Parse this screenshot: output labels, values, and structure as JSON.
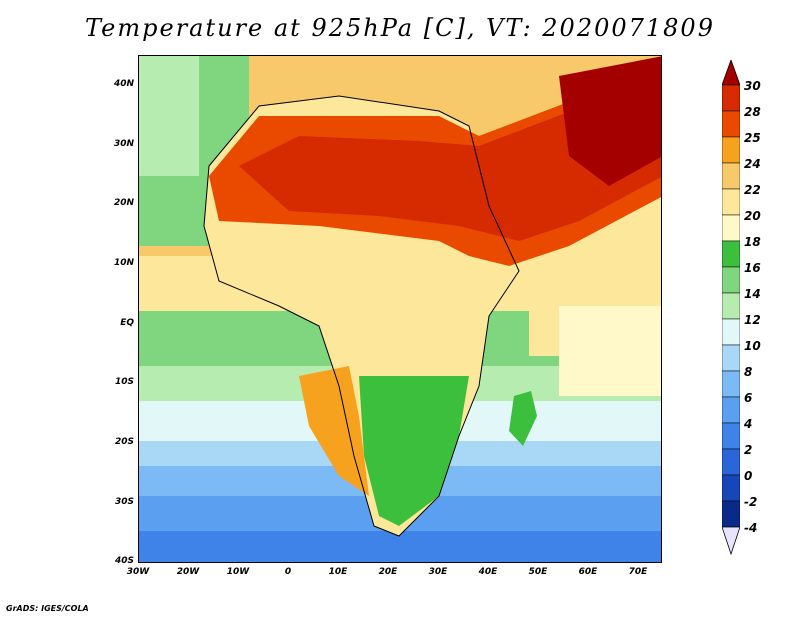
{
  "title": "Temperature at 925hPa [C], VT: 2020071809",
  "credit": "GrADS: IGES/COLA",
  "axes": {
    "lon_labels": [
      "30W",
      "20W",
      "10W",
      "0",
      "10E",
      "20E",
      "30E",
      "40E",
      "50E",
      "60E",
      "70E"
    ],
    "lat_labels": [
      "40N",
      "30N",
      "20N",
      "10N",
      "EQ",
      "10S",
      "20S",
      "30S",
      "40S"
    ]
  },
  "colorbar": {
    "labels": [
      "30",
      "28",
      "25",
      "24",
      "22",
      "20",
      "18",
      "16",
      "14",
      "12",
      "10",
      "8",
      "6",
      "4",
      "2",
      "0",
      "-2",
      "-4"
    ],
    "colors": [
      "#a50000",
      "#d62a00",
      "#ea4a00",
      "#f7a21e",
      "#f7c96a",
      "#fde79b",
      "#fff8c8",
      "#3cbf3c",
      "#7fd67f",
      "#b6ecb0",
      "#e2f8f8",
      "#a9d8f7",
      "#7bbaf5",
      "#5a9ff0",
      "#3f83e8",
      "#2a66d8",
      "#1746b8",
      "#0a2a8a",
      "#e8e4fb"
    ]
  },
  "map": {
    "region": "Africa and Middle East",
    "lon_range": [
      -30,
      75
    ],
    "lat_range": [
      -40,
      45
    ],
    "colors": {
      "ocean_cold": "#5a9ff0",
      "ocean_cool": "#a9d8f7",
      "ocean_mild": "#7fd67f",
      "land_warm": "#fde79b",
      "land_hot": "#d62a00",
      "land_very_hot": "#a50000"
    }
  }
}
